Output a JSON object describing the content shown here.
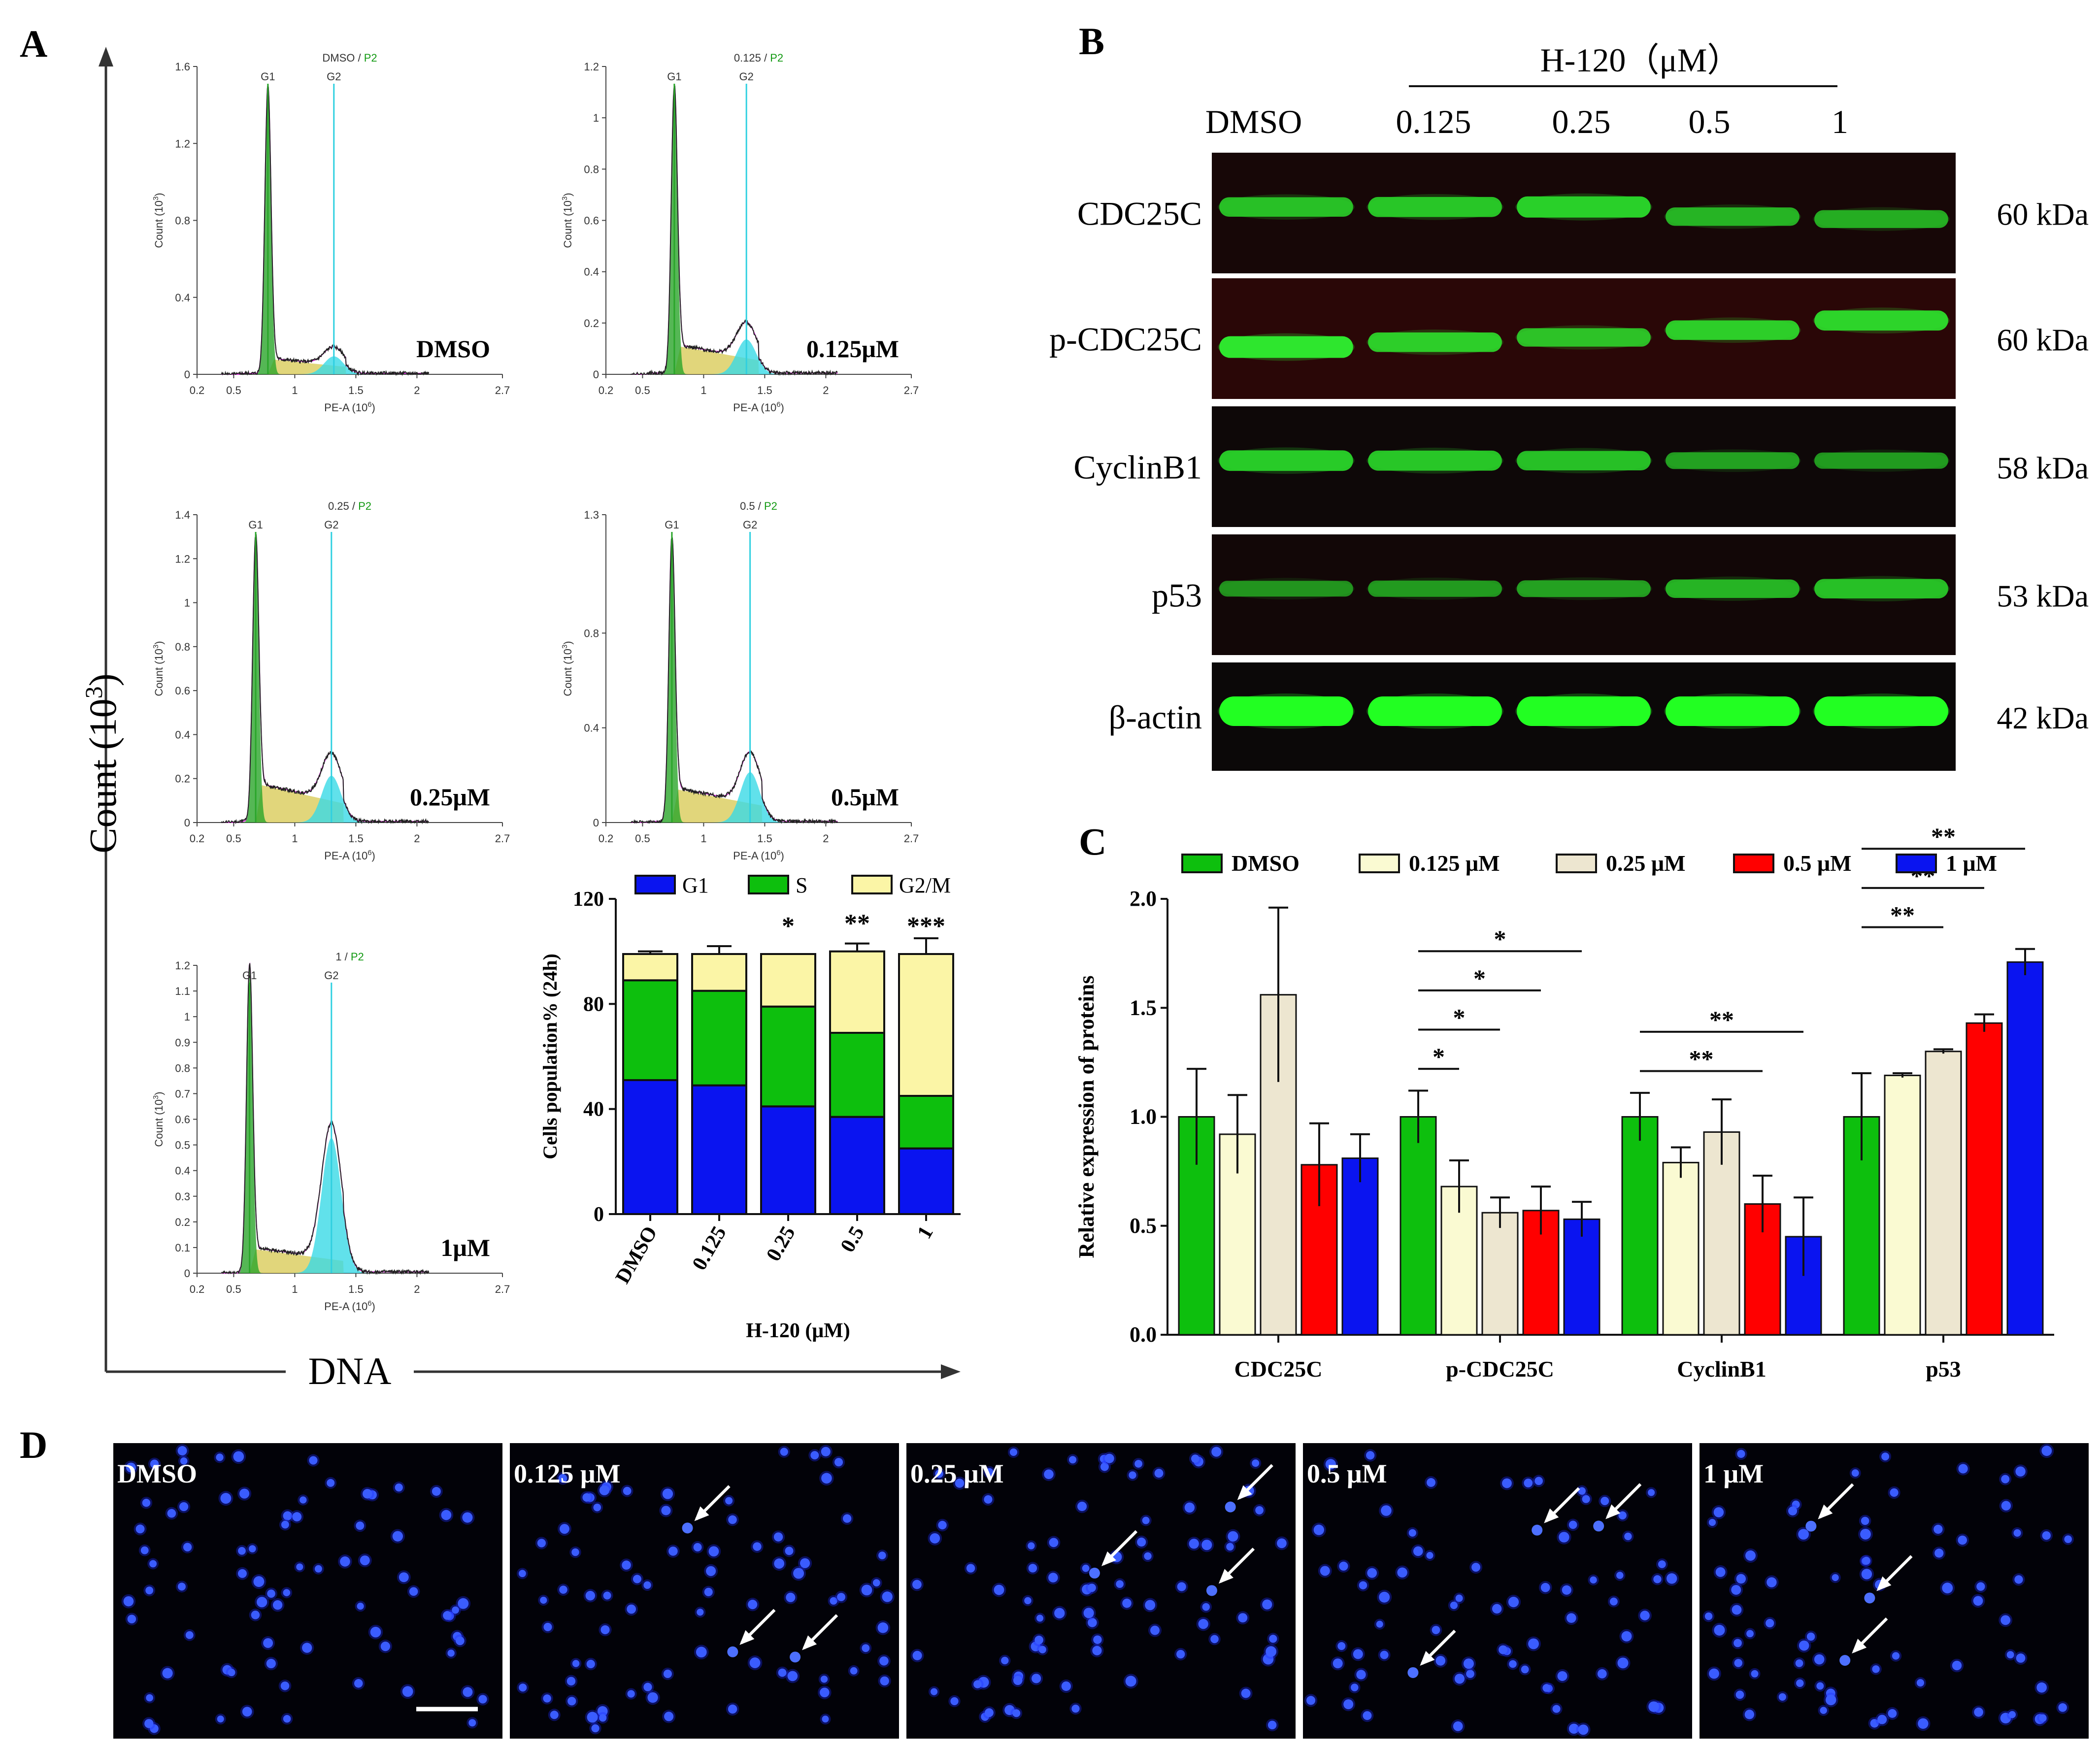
{
  "panel_labels": {
    "a": "A",
    "b": "B",
    "c": "C",
    "d": "D"
  },
  "panelA": {
    "count_label": "Count (10",
    "count_exp": "3",
    "count_close": ")",
    "dna_label": "DNA",
    "hist_axis": {
      "xlabel": "PE-A (10",
      "xlabel_exp": "6",
      "xlabel_close": ")",
      "ylabel": "Count (10",
      "ylabel_exp": "3",
      "ylabel_close": ")",
      "xticks": [
        "0.2",
        "0.5",
        "1",
        "1.5",
        "2",
        "2.7"
      ],
      "g1": "G1",
      "g2": "G2",
      "gate": "P2",
      "sep": " / "
    },
    "histograms": [
      {
        "title": "DMSO",
        "label": "DMSO",
        "yticks": [
          "0",
          "0.4",
          "0.8",
          "1.2",
          "1.6"
        ],
        "ymax": 1.6,
        "g1_x": 0.78,
        "g2_x": 1.32,
        "g1_peak": 1.5,
        "g2_peak": 0.11,
        "s_level": 0.05
      },
      {
        "title": "0.125",
        "label": "0.125μM",
        "yticks": [
          "0",
          "0.2",
          "0.4",
          "0.6",
          "0.8",
          "1",
          "1.2"
        ],
        "ymax": 1.2,
        "g1_x": 0.76,
        "g2_x": 1.35,
        "g1_peak": 1.12,
        "g2_peak": 0.16,
        "s_level": 0.07
      },
      {
        "title": "0.25",
        "label": "0.25μM",
        "yticks": [
          "0",
          "0.2",
          "0.4",
          "0.6",
          "0.8",
          "1",
          "1.2",
          "1.4"
        ],
        "ymax": 1.4,
        "g1_x": 0.68,
        "g2_x": 1.3,
        "g1_peak": 1.3,
        "g2_peak": 0.25,
        "s_level": 0.11
      },
      {
        "title": "0.5",
        "label": "0.5μM",
        "yticks": [
          "0",
          "0.4",
          "0.8",
          "1.3"
        ],
        "ymax": 1.3,
        "g1_x": 0.74,
        "g2_x": 1.38,
        "g1_peak": 1.2,
        "g2_peak": 0.25,
        "s_level": 0.09
      },
      {
        "title": "1",
        "label": "1μM",
        "yticks": [
          "0",
          "0.1",
          "0.2",
          "0.3",
          "0.4",
          "0.5",
          "0.6",
          "0.7",
          "0.8",
          "0.9",
          "1",
          "1.1",
          "1.2"
        ],
        "ymax": 1.2,
        "g1_x": 0.63,
        "g2_x": 1.3,
        "g1_peak": 1.2,
        "g2_peak": 0.62,
        "s_level": 0.06
      }
    ]
  },
  "chart_data": [
    {
      "type": "bar",
      "stacked": true,
      "title": "",
      "ylabel": "Cells population% (24h)",
      "xlabel": "H-120 (μM)",
      "categories": [
        "DMSO",
        "0.125",
        "0.25",
        "0.5",
        "1"
      ],
      "yticks": [
        "0",
        "40",
        "80",
        "120"
      ],
      "ylim": [
        0,
        120
      ],
      "series": [
        {
          "name": "G1",
          "color": "#0a14f0",
          "values": [
            51,
            49,
            41,
            37,
            25
          ],
          "errors": [
            9,
            4,
            8,
            6,
            2
          ]
        },
        {
          "name": "S",
          "color": "#0dbf0d",
          "values": [
            38,
            36,
            38,
            32,
            20
          ],
          "errors": [
            0,
            7,
            9,
            3,
            7
          ]
        },
        {
          "name": "G2/M",
          "color": "#fbf5a6",
          "values": [
            10,
            14,
            20,
            31,
            54
          ],
          "errors": [
            1,
            3,
            0,
            3,
            6
          ]
        }
      ],
      "significance": [
        "",
        "",
        "*",
        "**",
        "***"
      ]
    },
    {
      "type": "bar",
      "title": "",
      "ylabel": "Relative expression of proteins",
      "xlabel": "",
      "categories": [
        "CDC25C",
        "p-CDC25C",
        "CyclinB1",
        "p53"
      ],
      "yticks": [
        "0.0",
        "0.5",
        "1.0",
        "1.5",
        "2.0"
      ],
      "ylim": [
        0,
        2.0
      ],
      "series": [
        {
          "name": "DMSO",
          "color": "#0dbf0d",
          "values": [
            1.0,
            1.0,
            1.0,
            1.0
          ],
          "errors": [
            0.22,
            0.12,
            0.11,
            0.2
          ]
        },
        {
          "name": "0.125 μM",
          "color": "#fafad2",
          "values": [
            0.92,
            0.68,
            0.79,
            1.19
          ],
          "errors": [
            0.18,
            0.12,
            0.07,
            0.01
          ]
        },
        {
          "name": "0.25 μM",
          "color": "#ede6d0",
          "values": [
            1.56,
            0.56,
            0.93,
            1.3
          ],
          "errors": [
            0.4,
            0.07,
            0.15,
            0.01
          ]
        },
        {
          "name": "0.5 μM",
          "color": "#ff0000",
          "values": [
            0.78,
            0.57,
            0.6,
            1.43
          ],
          "errors": [
            0.19,
            0.11,
            0.13,
            0.04
          ]
        },
        {
          "name": "1 μM",
          "color": "#0a14f0",
          "values": [
            0.81,
            0.53,
            0.45,
            1.71
          ],
          "errors": [
            0.11,
            0.08,
            0.18,
            0.06
          ]
        }
      ],
      "significance": [
        {
          "group": 1,
          "from": 0,
          "to": 1,
          "label": "*"
        },
        {
          "group": 1,
          "from": 0,
          "to": 2,
          "label": "*"
        },
        {
          "group": 1,
          "from": 0,
          "to": 3,
          "label": "*"
        },
        {
          "group": 1,
          "from": 0,
          "to": 4,
          "label": "*"
        },
        {
          "group": 2,
          "from": 0,
          "to": 3,
          "label": "**"
        },
        {
          "group": 2,
          "from": 0,
          "to": 4,
          "label": "**"
        },
        {
          "group": 3,
          "from": 0,
          "to": 2,
          "label": "**"
        },
        {
          "group": 3,
          "from": 0,
          "to": 3,
          "label": "**"
        },
        {
          "group": 3,
          "from": 0,
          "to": 4,
          "label": "**"
        }
      ]
    }
  ],
  "panelB": {
    "header": "H-120（μM）",
    "lanes": [
      "DMSO",
      "0.125",
      "0.25",
      "0.5",
      "1"
    ],
    "blots": [
      {
        "protein": "CDC25C",
        "kda": "60 kDa",
        "bg": "#170707",
        "band_color": "#2ad62a",
        "intensity": [
          0.8,
          0.85,
          0.95,
          0.7,
          0.65
        ],
        "offset": [
          0,
          0,
          0,
          0.08,
          0.1
        ]
      },
      {
        "protein": "p-CDC25C",
        "kda": "60 kDa",
        "bg": "#2a0707",
        "band_color": "#2ee62e",
        "intensity": [
          1.0,
          0.8,
          0.7,
          0.8,
          0.85
        ],
        "offset": [
          0.12,
          0.08,
          0.04,
          -0.02,
          -0.1
        ]
      },
      {
        "protein": "CyclinB1",
        "kda": "58 kDa",
        "bg": "#0e0808",
        "band_color": "#2ad62a",
        "intensity": [
          0.9,
          0.85,
          0.8,
          0.55,
          0.5
        ],
        "offset": [
          0,
          0,
          0,
          0,
          0
        ]
      },
      {
        "protein": "p53",
        "kda": "53 kDa",
        "bg": "#120707",
        "band_color": "#2ad62a",
        "intensity": [
          0.45,
          0.5,
          0.55,
          0.7,
          0.8
        ],
        "offset": [
          0,
          0,
          0,
          0,
          0
        ]
      },
      {
        "protein": "β-actin",
        "kda": "42 kDa",
        "bg": "#0b0808",
        "band_color": "#22ff22",
        "intensity": [
          1.0,
          1.0,
          1.0,
          1.0,
          1.0
        ],
        "offset": [
          0,
          0,
          0,
          0,
          0
        ]
      }
    ]
  },
  "panelD": {
    "images": [
      {
        "label": "DMSO"
      },
      {
        "label": "0.125 μM"
      },
      {
        "label": "0.25 μM"
      },
      {
        "label": "0.5 μM"
      },
      {
        "label": "1 μM"
      }
    ]
  },
  "colors": {
    "fit_g1": "#2aa52a",
    "fit_s": "#d9cc5a",
    "fit_g2": "#39d9e6",
    "gate_line": "#30d0e0",
    "curve": "#222222",
    "envelope": "#cc22cc",
    "gate_text": "#119911"
  }
}
